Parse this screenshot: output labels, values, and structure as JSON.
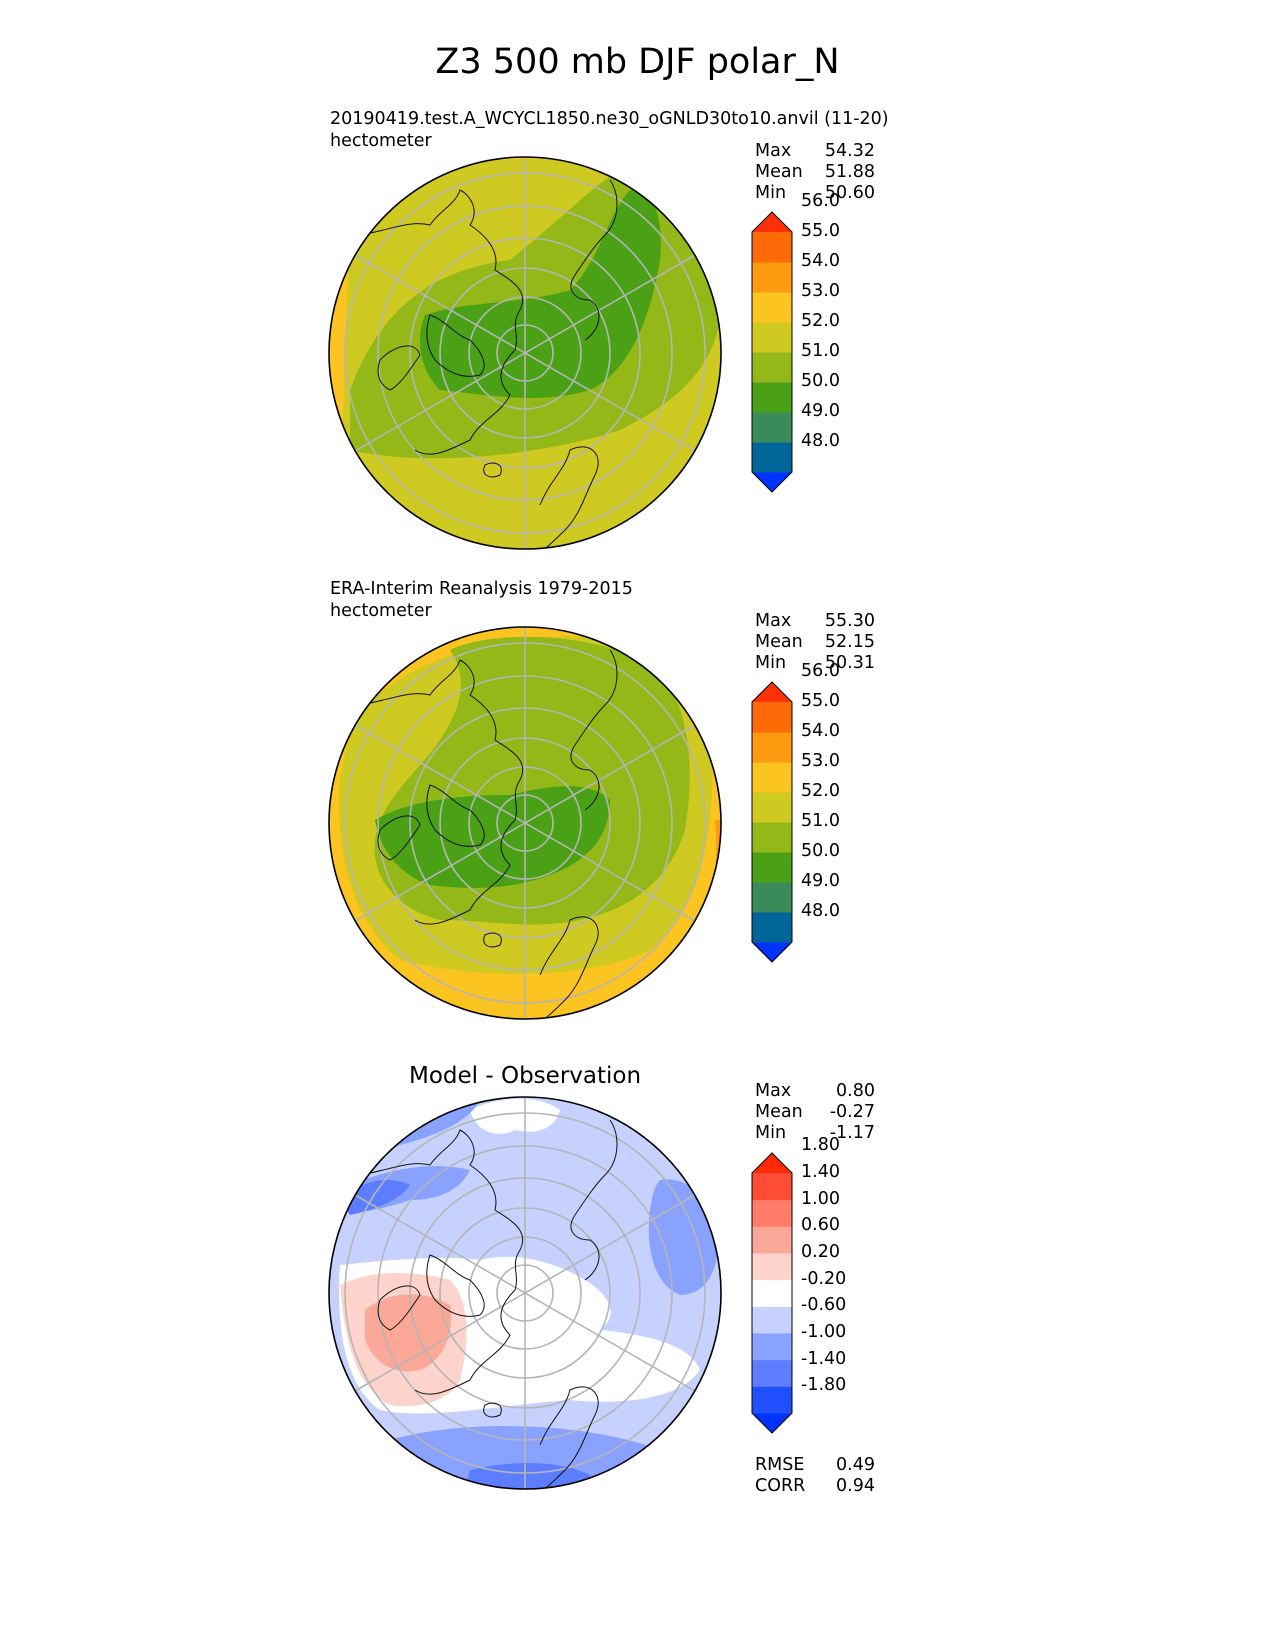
{
  "title": "Z3 500 mb DJF polar_N",
  "panels": [
    {
      "id": "test",
      "line1": "20190419.test.A_WCYCL1850.ne30_oGNLD30to10.anvil (11-20)",
      "line2": "hectometer",
      "stats": {
        "Max": "54.32",
        "Mean": "51.88",
        "Min": "50.60"
      }
    },
    {
      "id": "ref",
      "line1": "ERA-Interim Reanalysis 1979-2015",
      "line2": "hectometer",
      "stats": {
        "Max": "55.30",
        "Mean": "52.15",
        "Min": "50.31"
      }
    },
    {
      "id": "diff",
      "line1": "Model - Observation",
      "stats": {
        "Max": "0.80",
        "Mean": "-0.27",
        "Min": "-1.17"
      },
      "rmse_label": "RMSE",
      "rmse": "0.49",
      "corr_label": "CORR",
      "corr": "0.94"
    }
  ],
  "stat_labels": {
    "max": "Max",
    "mean": "Mean",
    "min": "Min"
  },
  "chart_data": [
    {
      "type": "contour-map",
      "projection": "north-polar-stereographic",
      "variable": "Z3 500 mb",
      "units": "hectometer",
      "colorbar": {
        "levels": [
          48.0,
          49.0,
          50.0,
          51.0,
          52.0,
          53.0,
          54.0,
          55.0,
          56.0
        ],
        "tick_labels": [
          "48.0",
          "49.0",
          "50.0",
          "51.0",
          "52.0",
          "53.0",
          "54.0",
          "55.0",
          "56.0"
        ],
        "colors": [
          "#0033ff",
          "#006699",
          "#3a8a5a",
          "#4aa116",
          "#94b818",
          "#cfca22",
          "#fcc420",
          "#fd9a10",
          "#fd6a08",
          "#fe3008"
        ],
        "extend": "both"
      }
    },
    {
      "type": "contour-map",
      "projection": "north-polar-stereographic",
      "variable": "Z3 500 mb",
      "units": "hectometer",
      "colorbar": {
        "levels": [
          48.0,
          49.0,
          50.0,
          51.0,
          52.0,
          53.0,
          54.0,
          55.0,
          56.0
        ],
        "tick_labels": [
          "48.0",
          "49.0",
          "50.0",
          "51.0",
          "52.0",
          "53.0",
          "54.0",
          "55.0",
          "56.0"
        ],
        "colors": [
          "#0033ff",
          "#006699",
          "#3a8a5a",
          "#4aa116",
          "#94b818",
          "#cfca22",
          "#fcc420",
          "#fd9a10",
          "#fd6a08",
          "#fe3008"
        ],
        "extend": "both"
      }
    },
    {
      "type": "contour-map",
      "projection": "north-polar-stereographic",
      "variable": "Model - Observation",
      "colorbar": {
        "levels": [
          -1.8,
          -1.4,
          -1.0,
          -0.6,
          -0.2,
          0.2,
          0.6,
          1.0,
          1.4,
          1.8
        ],
        "tick_labels": [
          "-1.80",
          "-1.40",
          "-1.00",
          "-0.60",
          "-0.20",
          "0.20",
          "0.60",
          "1.00",
          "1.40",
          "1.80"
        ],
        "colors": [
          "#0033ff",
          "#1f4fff",
          "#5c7dff",
          "#8aa2ff",
          "#c6d2fd",
          "#ffffff",
          "#fdd3cc",
          "#fba898",
          "#ff7d68",
          "#fe4c35",
          "#fe2a05"
        ],
        "extend": "both"
      }
    }
  ]
}
